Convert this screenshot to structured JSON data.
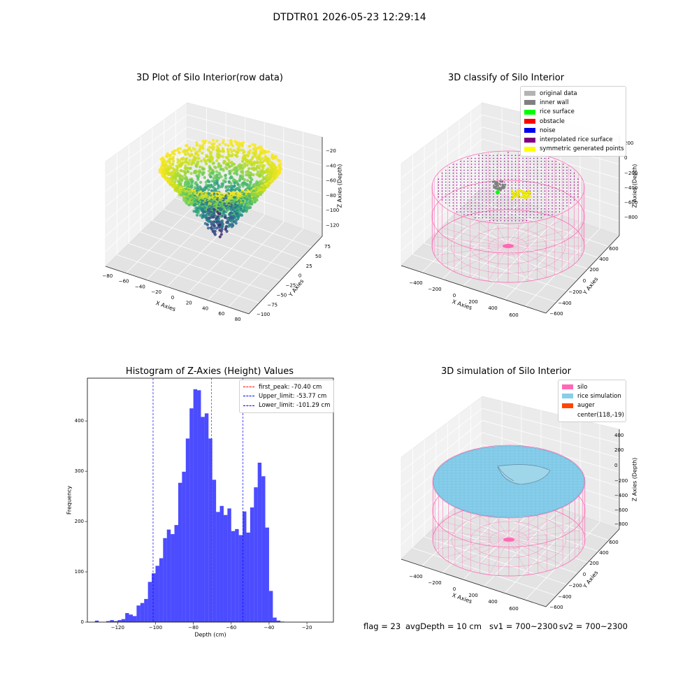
{
  "figure": {
    "suptitle": "DTDTR01 2026-05-23 12:29:14"
  },
  "chart_data": [
    {
      "type": "scatter3d",
      "title": "3D Plot of Silo Interior(row data)",
      "xlabel": "X Axies",
      "ylabel": "Y Axies",
      "zlabel": "Z Axies (Depth)",
      "xlim": [
        -90,
        90
      ],
      "ylim": [
        -105,
        95
      ],
      "zlim": [
        -140,
        -10
      ],
      "xticks": [
        -80,
        -60,
        -40,
        -20,
        0,
        20,
        40,
        60,
        80
      ],
      "yticks": [
        -100,
        -75,
        -50,
        -25,
        0,
        25,
        50,
        75
      ],
      "zticks": [
        -20,
        -40,
        -60,
        -80,
        -100,
        -120
      ],
      "colormap": "viridis",
      "grid": true
    },
    {
      "type": "scatter3d",
      "title": "3D classify of Silo Interior",
      "xlabel": "X Axies",
      "ylabel": "Y Axies",
      "zlabel": "Z Axies (Depth)",
      "xticks": [
        -400,
        -200,
        0,
        200,
        400,
        600
      ],
      "yticks": [
        -600,
        -400,
        -200,
        0,
        200,
        400,
        600
      ],
      "zticks": [
        200,
        0,
        -200,
        -400,
        -600,
        -800
      ],
      "legend_position": "top-right",
      "legend": [
        {
          "label": "original data",
          "color": "#b3b3b3"
        },
        {
          "label": "inner wall",
          "color": "#808080"
        },
        {
          "label": "rice surface",
          "color": "#00ff00"
        },
        {
          "label": "obstacle",
          "color": "#ff0000"
        },
        {
          "label": "noise",
          "color": "#0000ee"
        },
        {
          "label": "interpolated rice surface",
          "color": "#800080"
        },
        {
          "label": "symmetric generated points",
          "color": "#ffff00"
        }
      ],
      "silo_color": "#ff66b3",
      "grid": true
    },
    {
      "type": "bar",
      "title": "Histogram of Z-Axies (Height) Values",
      "xlabel": "Depth (cm)",
      "ylabel": "Frequency",
      "xlim": [
        -136,
        -6
      ],
      "ylim": [
        0,
        485
      ],
      "xticks": [
        -120,
        -100,
        -80,
        -60,
        -40,
        -20
      ],
      "yticks": [
        0,
        100,
        200,
        300,
        400
      ],
      "bin_start": -132,
      "bin_width": 2,
      "values": [
        3,
        0,
        0,
        2,
        4,
        2,
        4,
        6,
        18,
        15,
        12,
        33,
        38,
        46,
        80,
        97,
        112,
        127,
        167,
        184,
        175,
        193,
        277,
        299,
        365,
        425,
        463,
        461,
        408,
        415,
        365,
        283,
        219,
        231,
        213,
        226,
        181,
        185,
        173,
        220,
        178,
        228,
        268,
        317,
        290,
        188,
        62,
        9,
        3,
        1
      ],
      "bar_color": "#0000ff",
      "vlines": [
        {
          "x": -70.4,
          "label": "first_peak: -70.40 cm",
          "color": "#ff0000"
        },
        {
          "x": -53.77,
          "label": "Upper_limit: -53.77 cm",
          "color": "#0000ff"
        },
        {
          "x": -101.29,
          "label": "Lower_limit: -101.29 cm",
          "color": "#0000ff"
        }
      ],
      "legend_position": "top-right",
      "grid": false
    },
    {
      "type": "surface3d",
      "title": "3D simulation of Silo Interior",
      "xlabel": "X Axies",
      "ylabel": "Y Axies",
      "zlabel": "Z Axies (Depth)",
      "xticks": [
        -400,
        -200,
        0,
        200,
        400,
        600
      ],
      "yticks": [
        -600,
        -400,
        -200,
        0,
        200,
        400,
        600
      ],
      "zticks": [
        400,
        200,
        0,
        -200,
        -400,
        -600,
        -800
      ],
      "legend_position": "top-right",
      "legend": [
        {
          "label": "silo",
          "color": "#ff69b4"
        },
        {
          "label": "rice simulation",
          "color": "#87ceeb"
        },
        {
          "label": "auger",
          "color": "#ff4500"
        },
        {
          "label": "center(118,-19)",
          "color": ""
        }
      ],
      "grid": true
    }
  ],
  "status": {
    "flag": "flag = 23",
    "avg_depth": "avgDepth = 10 cm",
    "sv1": "sv1 = 700~2300",
    "sv2": "sv2 = 700~2300"
  }
}
